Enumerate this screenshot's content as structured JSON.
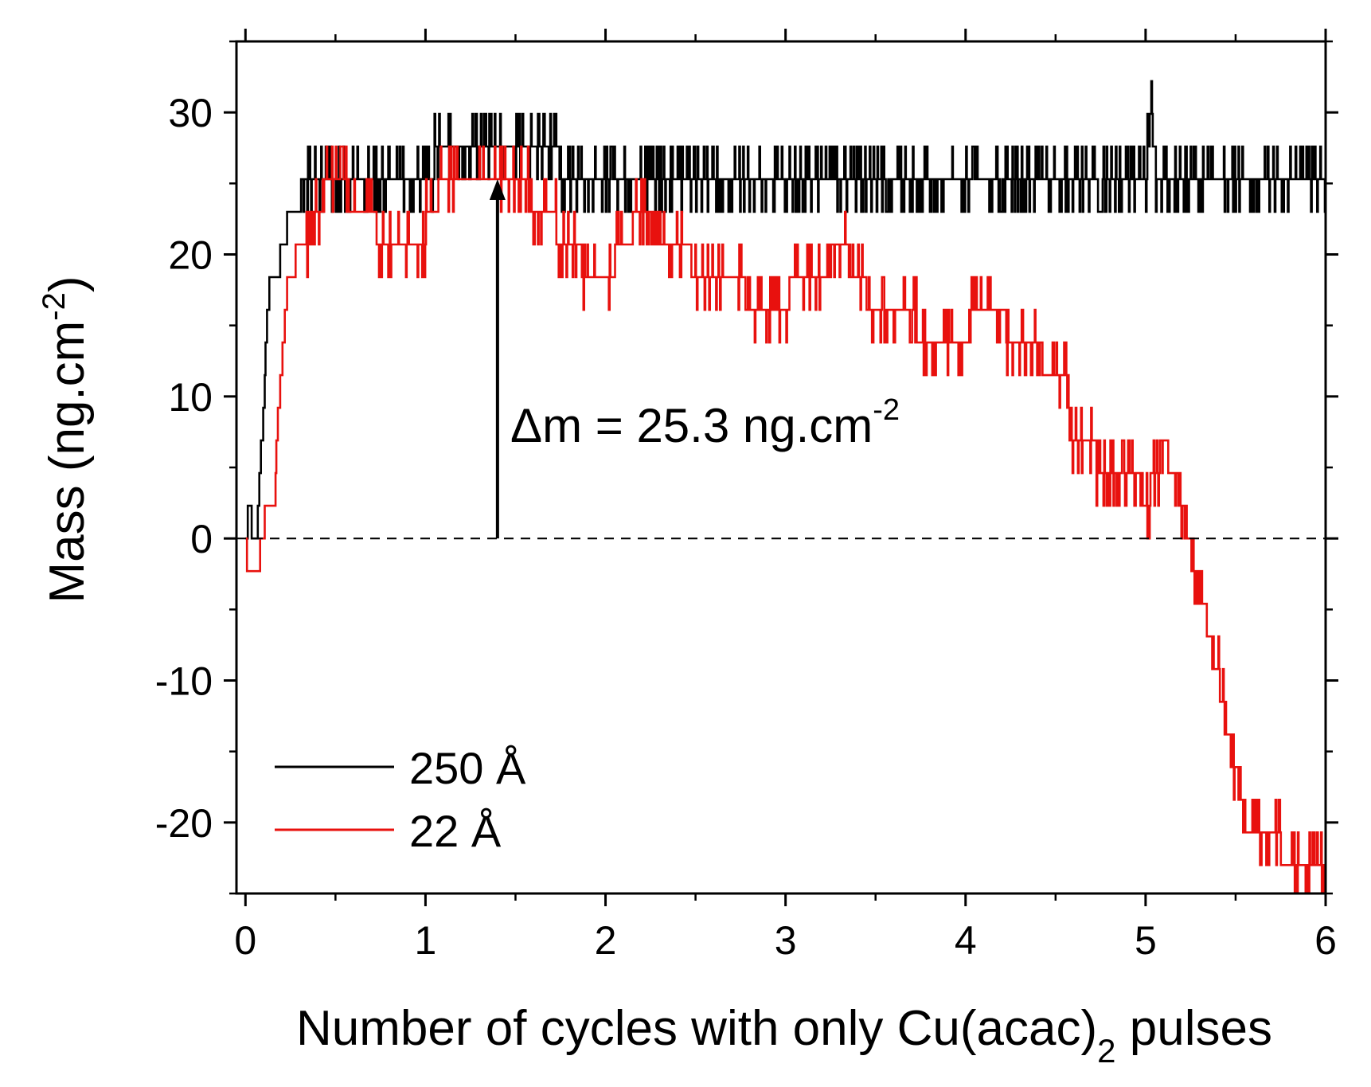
{
  "chart_data": {
    "type": "line",
    "title": "",
    "xlabel": {
      "main": "Number of cycles with only Cu(acac)",
      "sub": "2",
      "tail": " pulses"
    },
    "ylabel": {
      "main": "Mass (ng.cm",
      "sup": "-2",
      "tail": ")"
    },
    "xlim": [
      -0.05,
      6
    ],
    "ylim": [
      -25,
      35
    ],
    "xticks": [
      0,
      1,
      2,
      3,
      4,
      5,
      6
    ],
    "yticks": [
      -20,
      -10,
      0,
      10,
      20,
      30
    ],
    "zero_line": {
      "y": 0,
      "style": "dashed"
    },
    "annotation": {
      "text_main": "Δm = 25.3 ng.cm",
      "text_sup": "-2",
      "arrow_x": 1.4,
      "arrow_from": 0,
      "arrow_to": 25.3
    },
    "legend": {
      "position": "bottom-left"
    },
    "series": [
      {
        "name": "250 Å",
        "color": "#000000",
        "noise": 0.55,
        "points": [
          [
            0.0,
            0.0
          ],
          [
            0.02,
            2.3
          ],
          [
            0.04,
            0.0
          ],
          [
            0.06,
            0.0
          ],
          [
            0.08,
            4.6
          ],
          [
            0.1,
            9.2
          ],
          [
            0.12,
            16.1
          ],
          [
            0.14,
            18.4
          ],
          [
            0.18,
            18.4
          ],
          [
            0.2,
            20.7
          ],
          [
            0.22,
            20.7
          ],
          [
            0.24,
            23.0
          ],
          [
            0.3,
            23.0
          ],
          [
            0.32,
            25.3
          ],
          [
            0.4,
            25.3
          ],
          [
            0.5,
            25.3
          ],
          [
            0.6,
            25.3
          ],
          [
            0.8,
            25.3
          ],
          [
            1.0,
            25.3
          ],
          [
            1.1,
            27.6
          ],
          [
            1.2,
            27.6
          ],
          [
            1.5,
            27.6
          ],
          [
            2.0,
            25.3
          ],
          [
            2.5,
            25.3
          ],
          [
            3.0,
            25.3
          ],
          [
            3.5,
            25.3
          ],
          [
            4.0,
            25.3
          ],
          [
            4.5,
            25.3
          ],
          [
            5.0,
            25.3
          ],
          [
            5.03,
            29.9
          ],
          [
            5.06,
            25.3
          ],
          [
            5.5,
            25.3
          ],
          [
            6.0,
            25.3
          ],
          [
            6.0,
            23.0
          ]
        ]
      },
      {
        "name": "22 Å",
        "color": "#e8110e",
        "noise": 0.4,
        "points": [
          [
            0.0,
            0.0
          ],
          [
            0.01,
            -2.3
          ],
          [
            0.07,
            -2.3
          ],
          [
            0.09,
            0.0
          ],
          [
            0.12,
            2.3
          ],
          [
            0.16,
            2.3
          ],
          [
            0.18,
            9.2
          ],
          [
            0.2,
            11.5
          ],
          [
            0.21,
            13.8
          ],
          [
            0.22,
            16.1
          ],
          [
            0.24,
            18.4
          ],
          [
            0.27,
            18.4
          ],
          [
            0.28,
            20.7
          ],
          [
            0.35,
            20.7
          ],
          [
            0.38,
            23.0
          ],
          [
            0.42,
            23.0
          ],
          [
            0.45,
            25.3
          ],
          [
            0.52,
            25.3
          ],
          [
            0.53,
            27.6
          ],
          [
            0.55,
            25.3
          ],
          [
            0.6,
            23.0
          ],
          [
            0.7,
            23.0
          ],
          [
            0.75,
            20.7
          ],
          [
            0.85,
            20.7
          ],
          [
            0.95,
            20.7
          ],
          [
            1.05,
            23.0
          ],
          [
            1.1,
            25.3
          ],
          [
            1.3,
            25.3
          ],
          [
            1.45,
            25.3
          ],
          [
            1.55,
            25.3
          ],
          [
            1.6,
            23.0
          ],
          [
            1.7,
            23.0
          ],
          [
            1.75,
            20.7
          ],
          [
            1.85,
            20.7
          ],
          [
            1.9,
            18.4
          ],
          [
            2.0,
            18.4
          ],
          [
            2.1,
            20.7
          ],
          [
            2.2,
            23.0
          ],
          [
            2.3,
            20.7
          ],
          [
            2.4,
            20.7
          ],
          [
            2.55,
            18.4
          ],
          [
            2.75,
            18.4
          ],
          [
            2.8,
            16.1
          ],
          [
            3.0,
            16.1
          ],
          [
            3.05,
            18.4
          ],
          [
            3.2,
            18.4
          ],
          [
            3.3,
            20.7
          ],
          [
            3.4,
            18.4
          ],
          [
            3.5,
            16.1
          ],
          [
            3.7,
            16.1
          ],
          [
            3.75,
            13.8
          ],
          [
            3.9,
            13.8
          ],
          [
            4.0,
            13.8
          ],
          [
            4.05,
            16.1
          ],
          [
            4.2,
            16.1
          ],
          [
            4.25,
            13.8
          ],
          [
            4.4,
            13.8
          ],
          [
            4.45,
            11.5
          ],
          [
            4.55,
            11.5
          ],
          [
            4.6,
            6.9
          ],
          [
            4.7,
            6.9
          ],
          [
            4.75,
            4.6
          ],
          [
            4.95,
            4.6
          ],
          [
            5.0,
            2.3
          ],
          [
            5.1,
            6.9
          ],
          [
            5.15,
            4.6
          ],
          [
            5.2,
            2.3
          ],
          [
            5.23,
            0.0
          ],
          [
            5.27,
            -2.3
          ],
          [
            5.3,
            -2.3
          ],
          [
            5.35,
            -6.9
          ],
          [
            5.4,
            -9.2
          ],
          [
            5.45,
            -13.8
          ],
          [
            5.5,
            -16.1
          ],
          [
            5.55,
            -20.7
          ],
          [
            5.7,
            -20.7
          ],
          [
            5.8,
            -23.0
          ],
          [
            5.9,
            -23.0
          ],
          [
            6.0,
            -23.0
          ],
          [
            6.0,
            -25.0
          ]
        ]
      }
    ]
  }
}
